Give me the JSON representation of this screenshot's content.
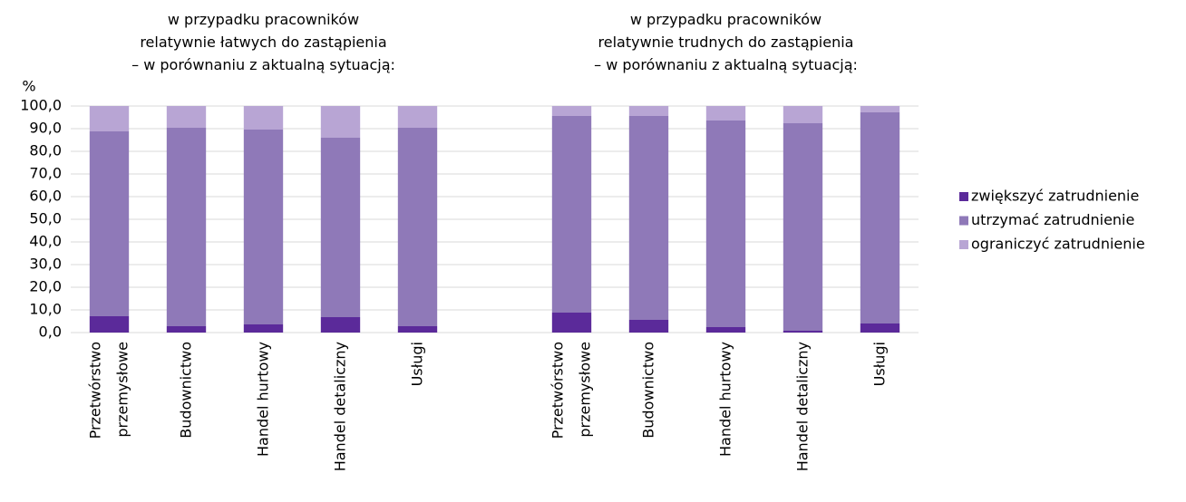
{
  "chart_data": {
    "type": "bar",
    "stacked": true,
    "ylabel": "%",
    "group_titles": [
      "w przypadku pracowników\nrelatywnie łatwych do zastąpienia\n– w porównaniu z aktualną sytuacją:",
      "w przypadku pracowników\nrelatywnie trudnych do zastąpienia\n– w porównaniu z aktualną sytuacją:"
    ],
    "categories": [
      "Przetwórstwo\nprzemysłowe",
      "Budownictwo",
      "Handel hurtowy",
      "Handel detaliczny",
      "Usługi",
      "Przetwórstwo\nprzemysłowe",
      "Budownictwo",
      "Handel hurtowy",
      "Handel detaliczny",
      "Usługi"
    ],
    "series": [
      {
        "name": "zwiększyć zatrudnienie",
        "color": "#5b2a9a",
        "values": [
          7.2,
          2.8,
          3.6,
          6.8,
          2.8,
          8.8,
          5.6,
          2.4,
          0.8,
          4.0
        ]
      },
      {
        "name": "utrzymać zatrudnienie",
        "color": "#8f79b8",
        "values": [
          81.6,
          87.6,
          86.0,
          79.2,
          87.6,
          86.8,
          90.0,
          91.2,
          91.6,
          93.2
        ]
      },
      {
        "name": "ograniczyć zatrudnienie",
        "color": "#b8a5d4",
        "values": [
          11.2,
          9.6,
          10.4,
          14.0,
          9.6,
          4.4,
          4.4,
          6.4,
          7.6,
          2.8
        ]
      }
    ],
    "ylim": [
      0,
      100
    ],
    "yticks": [
      {
        "value": 0,
        "label": "0,0"
      },
      {
        "value": 10,
        "label": "10,0"
      },
      {
        "value": 20,
        "label": "20,0"
      },
      {
        "value": 30,
        "label": "30,0"
      },
      {
        "value": 40,
        "label": "40,0"
      },
      {
        "value": 50,
        "label": "50,0"
      },
      {
        "value": 60,
        "label": "60,0"
      },
      {
        "value": 70,
        "label": "70,0"
      },
      {
        "value": 80,
        "label": "80,0"
      },
      {
        "value": 90,
        "label": "90,0"
      },
      {
        "value": 100,
        "label": "100,0"
      }
    ],
    "grid": true,
    "legend": "right"
  }
}
